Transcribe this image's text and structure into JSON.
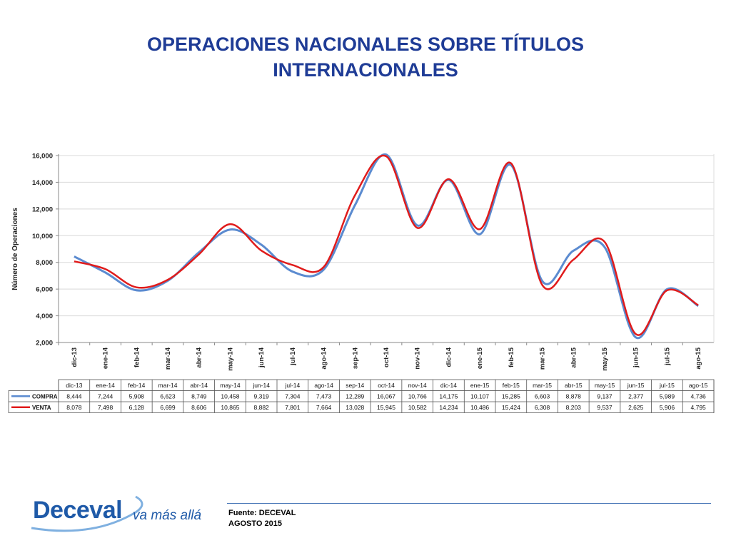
{
  "title_line1": "OPERACIONES NACIONALES SOBRE TÍTULOS",
  "title_line2": "INTERNACIONALES",
  "colors": {
    "title": "#1f3c96",
    "compra": "#5b8bd0",
    "venta": "#e01b1b",
    "grid": "#d9d9d9"
  },
  "chart_data": {
    "type": "line",
    "ylabel": "Número de Operaciones",
    "ylim": [
      2000,
      16000
    ],
    "yticks": [
      "2,000",
      "4,000",
      "6,000",
      "8,000",
      "10,000",
      "12,000",
      "14,000",
      "16,000"
    ],
    "ytick_values": [
      2000,
      4000,
      6000,
      8000,
      10000,
      12000,
      14000,
      16000
    ],
    "grid": true,
    "categories": [
      "dic-13",
      "ene-14",
      "feb-14",
      "mar-14",
      "abr-14",
      "may-14",
      "jun-14",
      "jul-14",
      "ago-14",
      "sep-14",
      "oct-14",
      "nov-14",
      "dic-14",
      "ene-15",
      "feb-15",
      "mar-15",
      "abr-15",
      "may-15",
      "jun-15",
      "jul-15",
      "ago-15"
    ],
    "series": [
      {
        "name": "COMPRA",
        "values": [
          8444,
          7244,
          5908,
          6623,
          8749,
          10458,
          9319,
          7304,
          7473,
          12289,
          16067,
          10766,
          14175,
          10107,
          15285,
          6603,
          8878,
          9137,
          2377,
          5989,
          4736
        ],
        "labels": [
          "8,444",
          "7,244",
          "5,908",
          "6,623",
          "8,749",
          "10,458",
          "9,319",
          "7,304",
          "7,473",
          "12,289",
          "16,067",
          "10,766",
          "14,175",
          "10,107",
          "15,285",
          "6,603",
          "8,878",
          "9,137",
          "2,377",
          "5,989",
          "4,736"
        ]
      },
      {
        "name": "VENTA",
        "values": [
          8078,
          7498,
          6128,
          6699,
          8606,
          10865,
          8882,
          7801,
          7664,
          13028,
          15945,
          10582,
          14234,
          10486,
          15424,
          6308,
          8203,
          9537,
          2625,
          5906,
          4795
        ],
        "labels": [
          "8,078",
          "7,498",
          "6,128",
          "6,699",
          "8,606",
          "10,865",
          "8,882",
          "7,801",
          "7,664",
          "13,028",
          "15,945",
          "10,582",
          "14,234",
          "10,486",
          "15,424",
          "6,308",
          "8,203",
          "9,537",
          "2,625",
          "5,906",
          "4,795"
        ]
      }
    ]
  },
  "footer": {
    "source": "Fuente: DECEVAL",
    "date": "AGOSTO 2015"
  },
  "logo": {
    "word": "Deceval",
    "tagline": "va más allá"
  }
}
